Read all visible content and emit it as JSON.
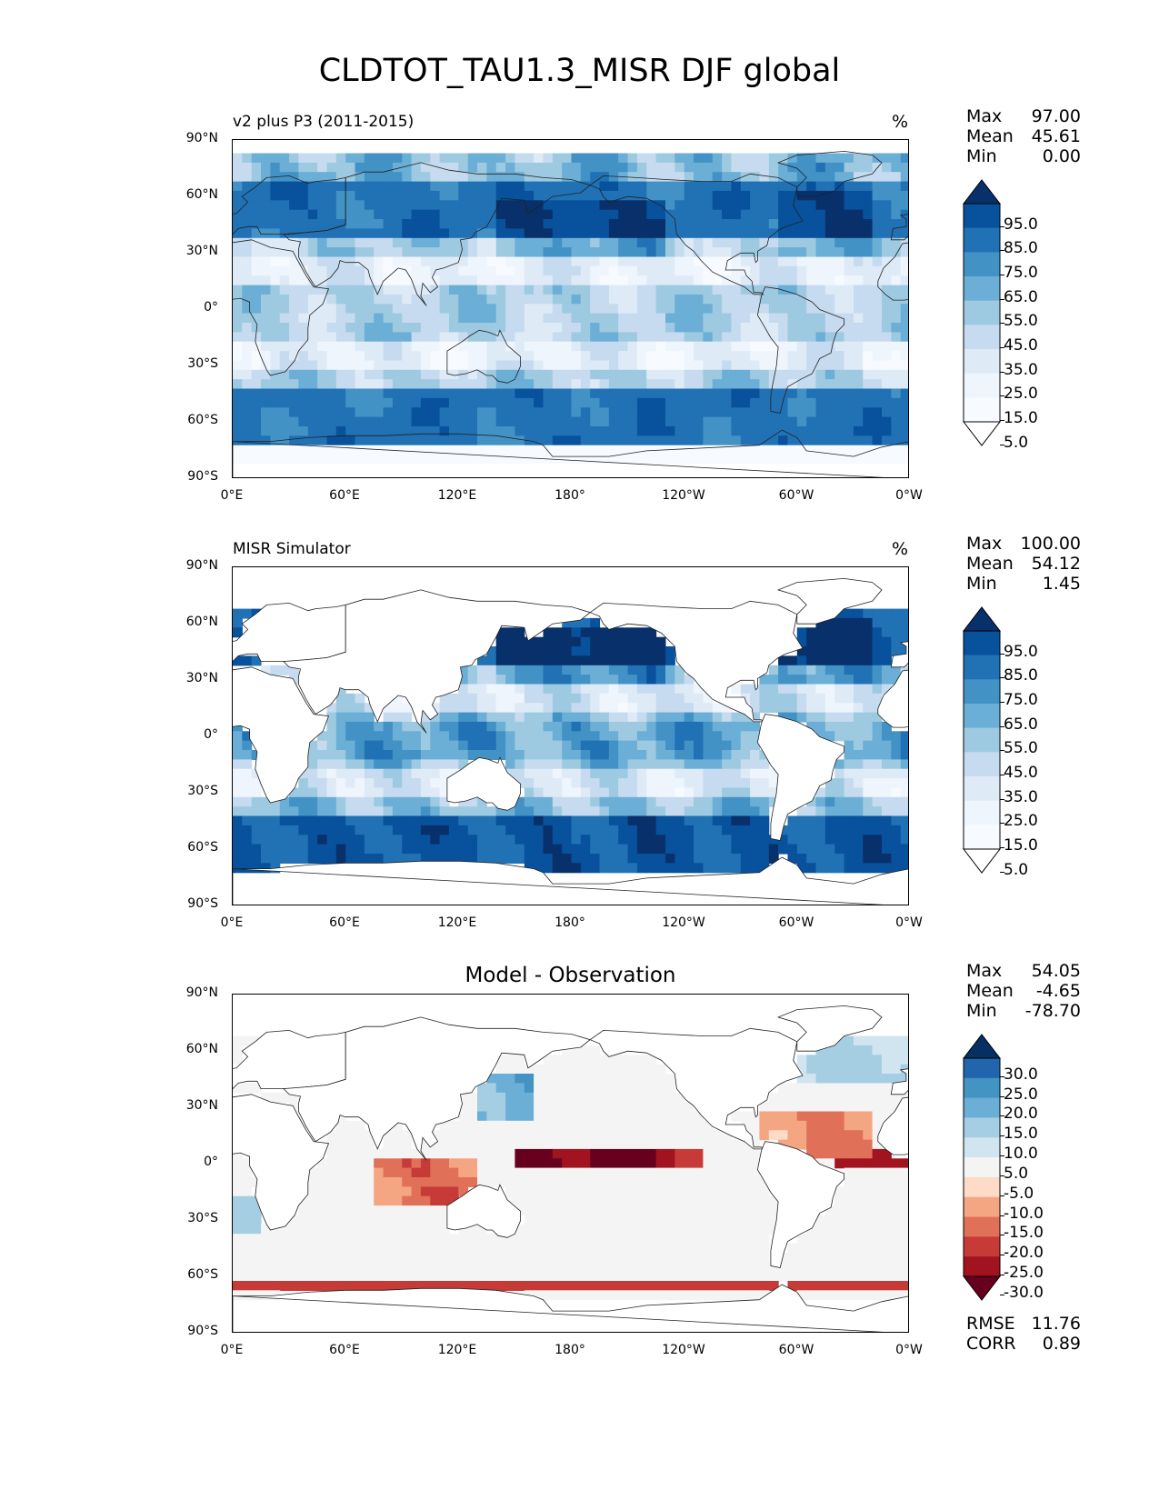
{
  "figure": {
    "title": "CLDTOT_TAU1.3_MISR DJF global"
  },
  "axes": {
    "lat_ticks": [
      "90°N",
      "60°N",
      "30°N",
      "0°",
      "30°S",
      "60°S",
      "90°S"
    ],
    "lon_ticks": [
      "0°E",
      "60°E",
      "120°E",
      "180°",
      "120°W",
      "60°W",
      "0°W"
    ]
  },
  "panels": [
    {
      "title": "v2 plus P3 (2011-2015)",
      "units": "%",
      "stats": {
        "max_label": "Max",
        "max": "97.00",
        "mean_label": "Mean",
        "mean": "45.61",
        "min_label": "Min",
        "min": "0.00"
      },
      "colorbar": {
        "labels": [
          "95.0",
          "85.0",
          "75.0",
          "65.0",
          "55.0",
          "45.0",
          "35.0",
          "25.0",
          "15.0",
          "5.0"
        ],
        "colors": [
          "#08306b",
          "#08519c",
          "#2171b5",
          "#4292c6",
          "#6baed6",
          "#9ecae1",
          "#c6dbef",
          "#deebf7",
          "#eef5fc",
          "#f7fbff",
          "#ffffff"
        ]
      },
      "field": "model"
    },
    {
      "title": "MISR Simulator",
      "units": "%",
      "stats": {
        "max_label": "Max",
        "max": "100.00",
        "mean_label": "Mean",
        "mean": "54.12",
        "min_label": "Min",
        "min": "1.45"
      },
      "colorbar": {
        "labels": [
          "95.0",
          "85.0",
          "75.0",
          "65.0",
          "55.0",
          "45.0",
          "35.0",
          "25.0",
          "15.0",
          "5.0"
        ],
        "colors": [
          "#08306b",
          "#08519c",
          "#2171b5",
          "#4292c6",
          "#6baed6",
          "#9ecae1",
          "#c6dbef",
          "#deebf7",
          "#eef5fc",
          "#f7fbff",
          "#ffffff"
        ]
      },
      "field": "obs"
    },
    {
      "title": "Model - Observation",
      "units": "",
      "stats": {
        "max_label": "Max",
        "max": "54.05",
        "mean_label": "Mean",
        "mean": "-4.65",
        "min_label": "Min",
        "min": "-78.70"
      },
      "colorbar": {
        "labels": [
          "30.0",
          "25.0",
          "20.0",
          "15.0",
          "10.0",
          "5.0",
          "-5.0",
          "-10.0",
          "-15.0",
          "-20.0",
          "-25.0",
          "-30.0"
        ],
        "colors": [
          "#053061",
          "#2166ac",
          "#4393c3",
          "#6baed6",
          "#a6cee3",
          "#d1e5f0",
          "#f4f4f4",
          "#fddbc7",
          "#f4a582",
          "#e07058",
          "#c63a37",
          "#a1141f",
          "#67001f"
        ]
      },
      "extra_stats": {
        "rmse_label": "RMSE",
        "rmse": "11.76",
        "corr_label": "CORR",
        "corr": "0.89"
      },
      "field": "diff"
    }
  ]
}
